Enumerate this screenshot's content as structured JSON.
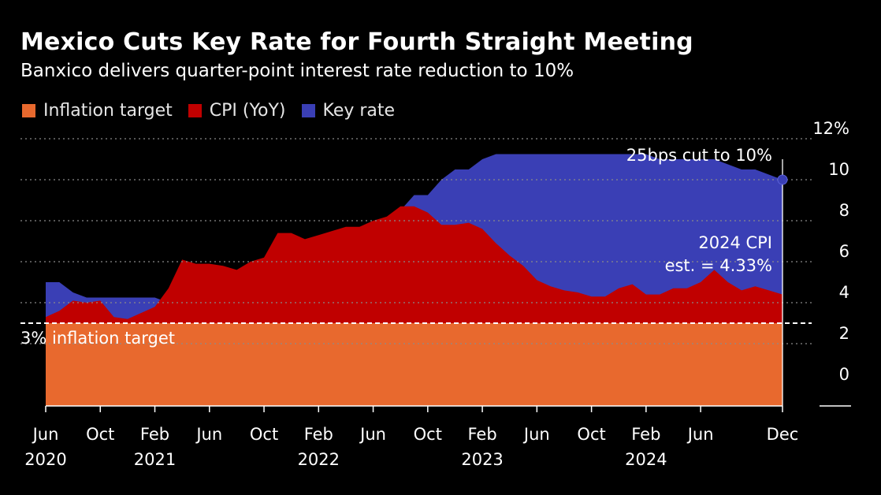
{
  "title": "Mexico Cuts Key Rate for Fourth Straight Meeting",
  "subtitle": "Banxico delivers quarter-point interest rate reduction to 10%",
  "chart_data": {
    "type": "area",
    "title": "Mexico Cuts Key Rate for Fourth Straight Meeting",
    "subtitle": "Banxico delivers quarter-point interest rate reduction to 10%",
    "legend": {
      "placement": "top-left",
      "items": [
        {
          "name": "Inflation target",
          "color": "#E8692E"
        },
        {
          "name": "CPI (YoY)",
          "color": "#C00000"
        },
        {
          "name": "Key rate",
          "color": "#3A3FB5"
        }
      ]
    },
    "y_axis": {
      "ylim": [
        -1,
        13
      ],
      "ticks": [
        0,
        2,
        4,
        6,
        8,
        10,
        12
      ],
      "tick_labels": [
        "0",
        "2",
        "4",
        "6",
        "8",
        "10",
        "12%"
      ],
      "side": "right",
      "grid": true
    },
    "x_axis": {
      "range": [
        "2020-06",
        "2024-12"
      ],
      "ticks": [
        {
          "date": "2020-06",
          "label": "Jun",
          "year": "2020"
        },
        {
          "date": "2020-10",
          "label": "Oct",
          "year": ""
        },
        {
          "date": "2021-02",
          "label": "Feb",
          "year": "2021"
        },
        {
          "date": "2021-06",
          "label": "Jun",
          "year": ""
        },
        {
          "date": "2021-10",
          "label": "Oct",
          "year": ""
        },
        {
          "date": "2022-02",
          "label": "Feb",
          "year": "2022"
        },
        {
          "date": "2022-06",
          "label": "Jun",
          "year": ""
        },
        {
          "date": "2022-10",
          "label": "Oct",
          "year": ""
        },
        {
          "date": "2023-02",
          "label": "Feb",
          "year": "2023"
        },
        {
          "date": "2023-06",
          "label": "Jun",
          "year": ""
        },
        {
          "date": "2023-10",
          "label": "Oct",
          "year": ""
        },
        {
          "date": "2024-02",
          "label": "Feb",
          "year": "2024"
        },
        {
          "date": "2024-06",
          "label": "Jun",
          "year": ""
        },
        {
          "date": "2024-12",
          "label": "Dec",
          "year": ""
        }
      ]
    },
    "series": [
      {
        "name": "Inflation target",
        "color": "#E8692E",
        "value": 3
      },
      {
        "name": "CPI (YoY)",
        "color": "#C00000",
        "points": [
          [
            "2020-06",
            3.3
          ],
          [
            "2020-07",
            3.6
          ],
          [
            "2020-08",
            4.1
          ],
          [
            "2020-09",
            4.0
          ],
          [
            "2020-10",
            4.1
          ],
          [
            "2020-11",
            3.3
          ],
          [
            "2020-12",
            3.2
          ],
          [
            "2021-01",
            3.5
          ],
          [
            "2021-02",
            3.8
          ],
          [
            "2021-03",
            4.7
          ],
          [
            "2021-04",
            6.1
          ],
          [
            "2021-05",
            5.9
          ],
          [
            "2021-06",
            5.9
          ],
          [
            "2021-07",
            5.8
          ],
          [
            "2021-08",
            5.6
          ],
          [
            "2021-09",
            6.0
          ],
          [
            "2021-10",
            6.2
          ],
          [
            "2021-11",
            7.4
          ],
          [
            "2021-12",
            7.4
          ],
          [
            "2022-01",
            7.1
          ],
          [
            "2022-02",
            7.3
          ],
          [
            "2022-03",
            7.5
          ],
          [
            "2022-04",
            7.7
          ],
          [
            "2022-05",
            7.7
          ],
          [
            "2022-06",
            8.0
          ],
          [
            "2022-07",
            8.2
          ],
          [
            "2022-08",
            8.7
          ],
          [
            "2022-09",
            8.7
          ],
          [
            "2022-10",
            8.4
          ],
          [
            "2022-11",
            7.8
          ],
          [
            "2022-12",
            7.8
          ],
          [
            "2023-01",
            7.9
          ],
          [
            "2023-02",
            7.6
          ],
          [
            "2023-03",
            6.9
          ],
          [
            "2023-04",
            6.3
          ],
          [
            "2023-05",
            5.8
          ],
          [
            "2023-06",
            5.1
          ],
          [
            "2023-07",
            4.8
          ],
          [
            "2023-08",
            4.6
          ],
          [
            "2023-09",
            4.5
          ],
          [
            "2023-10",
            4.3
          ],
          [
            "2023-11",
            4.3
          ],
          [
            "2023-12",
            4.7
          ],
          [
            "2024-01",
            4.9
          ],
          [
            "2024-02",
            4.4
          ],
          [
            "2024-03",
            4.4
          ],
          [
            "2024-04",
            4.7
          ],
          [
            "2024-05",
            4.7
          ],
          [
            "2024-06",
            5.0
          ],
          [
            "2024-07",
            5.6
          ],
          [
            "2024-08",
            5.0
          ],
          [
            "2024-09",
            4.6
          ],
          [
            "2024-10",
            4.8
          ],
          [
            "2024-11",
            4.6
          ],
          [
            "2024-12",
            4.4
          ]
        ]
      },
      {
        "name": "Key rate",
        "color": "#3A3FB5",
        "points": [
          [
            "2020-06",
            5.0
          ],
          [
            "2020-07",
            5.0
          ],
          [
            "2020-08",
            4.5
          ],
          [
            "2020-09",
            4.25
          ],
          [
            "2020-10",
            4.25
          ],
          [
            "2020-11",
            4.25
          ],
          [
            "2020-12",
            4.25
          ],
          [
            "2021-01",
            4.25
          ],
          [
            "2021-02",
            4.25
          ],
          [
            "2021-03",
            4.0
          ],
          [
            "2021-04",
            4.0
          ],
          [
            "2021-05",
            4.0
          ],
          [
            "2021-06",
            4.25
          ],
          [
            "2021-07",
            4.25
          ],
          [
            "2021-08",
            4.5
          ],
          [
            "2021-09",
            4.75
          ],
          [
            "2021-10",
            4.75
          ],
          [
            "2021-11",
            5.0
          ],
          [
            "2021-12",
            5.5
          ],
          [
            "2022-01",
            5.5
          ],
          [
            "2022-02",
            6.0
          ],
          [
            "2022-03",
            6.5
          ],
          [
            "2022-04",
            6.5
          ],
          [
            "2022-05",
            7.0
          ],
          [
            "2022-06",
            7.75
          ],
          [
            "2022-07",
            7.75
          ],
          [
            "2022-08",
            8.5
          ],
          [
            "2022-09",
            9.25
          ],
          [
            "2022-10",
            9.25
          ],
          [
            "2022-11",
            10.0
          ],
          [
            "2022-12",
            10.5
          ],
          [
            "2023-01",
            10.5
          ],
          [
            "2023-02",
            11.0
          ],
          [
            "2023-03",
            11.25
          ],
          [
            "2023-04",
            11.25
          ],
          [
            "2023-05",
            11.25
          ],
          [
            "2023-06",
            11.25
          ],
          [
            "2023-07",
            11.25
          ],
          [
            "2023-08",
            11.25
          ],
          [
            "2023-09",
            11.25
          ],
          [
            "2023-10",
            11.25
          ],
          [
            "2023-11",
            11.25
          ],
          [
            "2023-12",
            11.25
          ],
          [
            "2024-01",
            11.25
          ],
          [
            "2024-02",
            11.25
          ],
          [
            "2024-03",
            11.0
          ],
          [
            "2024-04",
            11.0
          ],
          [
            "2024-05",
            11.0
          ],
          [
            "2024-06",
            11.0
          ],
          [
            "2024-07",
            11.0
          ],
          [
            "2024-08",
            10.75
          ],
          [
            "2024-09",
            10.5
          ],
          [
            "2024-10",
            10.5
          ],
          [
            "2024-11",
            10.25
          ],
          [
            "2024-12",
            10.0
          ]
        ]
      }
    ],
    "annotations": [
      {
        "id": "target",
        "text": "3% inflation target"
      },
      {
        "id": "cut",
        "text": "25bps cut to 10%"
      },
      {
        "id": "cpi_est",
        "lines": [
          "2024 CPI",
          "est. = 4.33%"
        ]
      }
    ]
  }
}
